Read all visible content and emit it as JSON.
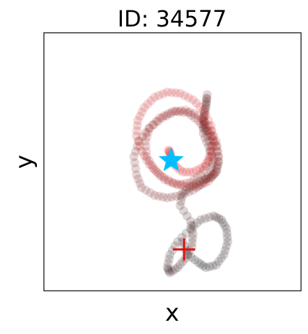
{
  "chart_data": {
    "type": "scatter",
    "title": "ID: 34577",
    "xlabel": "x",
    "ylabel": "y",
    "xlim": [
      0,
      100
    ],
    "ylim": [
      0,
      100
    ],
    "ticks": "none",
    "grid": false,
    "series": [
      {
        "color_start": "#000000",
        "color_end": "#e01010",
        "x": [
          54.0,
          56.0,
          60.0,
          63.0,
          67.0,
          70.0,
          71.5,
          71.0,
          69.0,
          66.0,
          61.0,
          57.0,
          52.0,
          49.0,
          48.0,
          49.0,
          52.0,
          55.0,
          57.5,
          58.0,
          57.0,
          53.0,
          54.0,
          58.0,
          62.0,
          65.0,
          67.0,
          68.0,
          67.0,
          65.0,
          63.0,
          62.0,
          63.0,
          63.5,
          63.0,
          62.0,
          62.0,
          64.0,
          66.0,
          65.0,
          62.0,
          58.0,
          53.0,
          48.0,
          43.0,
          38.0,
          36.0,
          35.0,
          37.0,
          41.0,
          46.0,
          51.0,
          56.0,
          60.0,
          63.0,
          65.0,
          64.0,
          61.0,
          57.0,
          52.0,
          47.0,
          43.0,
          40.0,
          39.5,
          41.0,
          45.0,
          50.0,
          55.0,
          60.0,
          64.0,
          67.0,
          68.0,
          67.0,
          64.0,
          60.0,
          55.0,
          50.0,
          45.0,
          41.0,
          38.0,
          36.0,
          36.5,
          39.0,
          43.0,
          48.0,
          53.0,
          58.0,
          62.0,
          65.0,
          66.0,
          65.0,
          62.0,
          58.0,
          54.0,
          51.0,
          49.5,
          49.0,
          48.5
        ],
        "y": [
          19.0,
          14.0,
          11.0,
          9.0,
          10.0,
          14.0,
          19.0,
          24.0,
          27.5,
          29.0,
          27.5,
          24.0,
          19.0,
          14.0,
          9.0,
          7.0,
          9.0,
          12.5,
          17.0,
          22.0,
          27.0,
          33.0,
          38.0,
          41.0,
          43.0,
          44.0,
          46.0,
          50.0,
          56.0,
          60.0,
          63.0,
          67.0,
          72.0,
          76.0,
          71.0,
          66.0,
          61.0,
          56.0,
          51.0,
          46.0,
          42.0,
          39.0,
          37.0,
          36.0,
          37.0,
          40.0,
          45.0,
          52.0,
          58.0,
          63.0,
          67.0,
          69.5,
          69.0,
          66.0,
          62.0,
          56.0,
          50.0,
          45.0,
          42.0,
          41.0,
          43.0,
          47.0,
          52.0,
          58.0,
          63.0,
          67.0,
          69.5,
          70.0,
          68.0,
          64.0,
          58.0,
          52.0,
          46.5,
          42.5,
          40.5,
          40.5,
          42.0,
          45.0,
          49.0,
          54.0,
          60.0,
          66.0,
          71.0,
          75.0,
          77.0,
          76.5,
          74.0,
          70.0,
          64.0,
          58.0,
          52.0,
          48.0,
          46.0,
          46.0,
          48.5,
          51.5,
          53.5,
          54.5
        ]
      }
    ],
    "markers": [
      {
        "name": "start",
        "shape": "cross",
        "color": "#e01010",
        "x": 54.5,
        "y": 16.0
      },
      {
        "name": "end",
        "shape": "star",
        "color": "#00bfff",
        "x": 49.5,
        "y": 50.5
      }
    ]
  }
}
